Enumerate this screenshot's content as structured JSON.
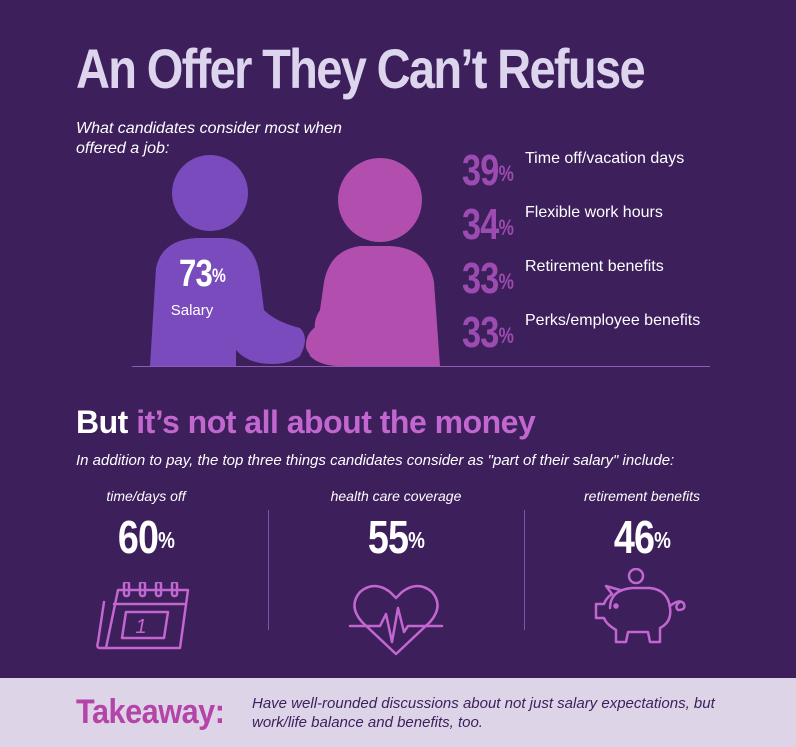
{
  "title": "An Offer They Can’t Refuse",
  "subtitle": "What candidates consider most when offered a job:",
  "salary": {
    "value": "73",
    "unit": "%",
    "label": "Salary"
  },
  "stats": [
    {
      "value": "39",
      "unit": "%",
      "label": "Time off/vacation days"
    },
    {
      "value": "34",
      "unit": "%",
      "label": "Flexible work hours"
    },
    {
      "value": "33",
      "unit": "%",
      "label": "Retirement benefits"
    },
    {
      "value": "33",
      "unit": "%",
      "label": "Perks/employee benefits"
    }
  ],
  "section": {
    "title_white": "But",
    "title_purple": "it’s not all about the money",
    "subtitle": "In addition to pay, the top three things candidates consider as \"part of their salary\" include:"
  },
  "columns": [
    {
      "label": "time/days off",
      "value": "60",
      "unit": "%",
      "icon": "calendar-icon",
      "calendar_day": "1"
    },
    {
      "label": "health care coverage",
      "value": "55",
      "unit": "%",
      "icon": "heart-pulse-icon"
    },
    {
      "label": "retirement benefits",
      "value": "46",
      "unit": "%",
      "icon": "piggy-bank-icon"
    }
  ],
  "takeaway": {
    "label": "Takeaway:",
    "text": "Have well-rounded discussions about not just salary expectations, but work/life balance and benefits, too."
  },
  "colors": {
    "background": "#3c1f5b",
    "accent_purple": "#9c4bb0",
    "heading_purple": "#c267d0",
    "person_left": "#7a4bbd",
    "person_right": "#b24fae",
    "takeaway_bar": "#ddd4e8"
  }
}
